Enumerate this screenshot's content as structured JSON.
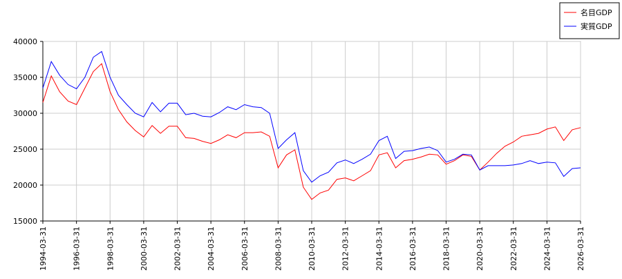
{
  "chart_data": {
    "type": "line",
    "x": [
      "1994-03-31",
      "1994-09-30",
      "1995-03-31",
      "1995-09-30",
      "1996-03-31",
      "1996-09-30",
      "1997-03-31",
      "1997-09-30",
      "1998-03-31",
      "1998-09-30",
      "1999-03-31",
      "1999-09-30",
      "2000-03-31",
      "2000-09-30",
      "2001-03-31",
      "2001-09-30",
      "2002-03-31",
      "2002-09-30",
      "2003-03-31",
      "2003-09-30",
      "2004-03-31",
      "2004-09-30",
      "2005-03-31",
      "2005-09-30",
      "2006-03-31",
      "2006-09-30",
      "2007-03-31",
      "2007-09-30",
      "2008-03-31",
      "2008-09-30",
      "2009-03-31",
      "2009-09-30",
      "2010-03-31",
      "2010-09-30",
      "2011-03-31",
      "2011-09-30",
      "2012-03-31",
      "2012-09-30",
      "2013-03-31",
      "2013-09-30",
      "2014-03-31",
      "2014-09-30",
      "2015-03-31",
      "2015-09-30",
      "2016-03-31",
      "2016-09-30",
      "2017-03-31",
      "2017-09-30",
      "2018-03-31",
      "2018-09-30",
      "2019-03-31",
      "2019-09-30",
      "2020-03-31",
      "2020-09-30",
      "2021-03-31",
      "2021-09-30",
      "2022-03-31",
      "2022-09-30",
      "2023-03-31",
      "2023-09-30",
      "2024-03-31",
      "2024-09-30",
      "2025-03-31",
      "2025-09-30",
      "2026-03-31"
    ],
    "series": [
      {
        "name": "名目GDP",
        "color": "#ff0000",
        "values": [
          31500,
          35200,
          33000,
          31700,
          31200,
          33500,
          35800,
          36900,
          33000,
          30500,
          28800,
          27600,
          26700,
          28300,
          27200,
          28200,
          28200,
          26600,
          26500,
          26100,
          25800,
          26300,
          27000,
          26600,
          27300,
          27300,
          27400,
          26800,
          22400,
          24200,
          24900,
          19700,
          18000,
          18900,
          19300,
          20800,
          21000,
          20600,
          21300,
          22000,
          24200,
          24500,
          22400,
          23400,
          23600,
          23900,
          24300,
          24200,
          22900,
          23400,
          24200,
          24000,
          22100,
          23200,
          24400,
          25400,
          26000,
          26800,
          27000,
          27200,
          27800,
          28100,
          26200,
          27700,
          28000
        ]
      },
      {
        "name": "実質GDP",
        "color": "#0000ff",
        "values": [
          33500,
          37200,
          35300,
          34000,
          33400,
          35000,
          37800,
          38600,
          35000,
          32500,
          31200,
          30000,
          29500,
          31500,
          30200,
          31400,
          31400,
          29800,
          30000,
          29600,
          29500,
          30100,
          30900,
          30500,
          31200,
          30900,
          30800,
          30000,
          25100,
          26300,
          27300,
          22000,
          20400,
          21300,
          21800,
          23100,
          23500,
          23000,
          23600,
          24300,
          26200,
          26800,
          23700,
          24700,
          24800,
          25100,
          25300,
          24800,
          23200,
          23600,
          24300,
          24200,
          22100,
          22700,
          22700,
          22700,
          22800,
          23000,
          23400,
          23000,
          23200,
          23100,
          21200,
          22300,
          22400
        ]
      }
    ],
    "xlim": [
      "1994-03-31",
      "2026-03-31"
    ],
    "xticks": [
      "1994-03-31",
      "1996-03-31",
      "1998-03-31",
      "2000-03-31",
      "2002-03-31",
      "2004-03-31",
      "2006-03-31",
      "2008-03-31",
      "2010-03-31",
      "2012-03-31",
      "2014-03-31",
      "2016-03-31",
      "2018-03-31",
      "2020-03-31",
      "2022-03-31",
      "2024-03-31",
      "2026-03-31"
    ],
    "ylim": [
      15000,
      40000
    ],
    "yticks": [
      15000,
      20000,
      25000,
      30000,
      35000,
      40000
    ],
    "grid": true,
    "legend": "top-right"
  }
}
